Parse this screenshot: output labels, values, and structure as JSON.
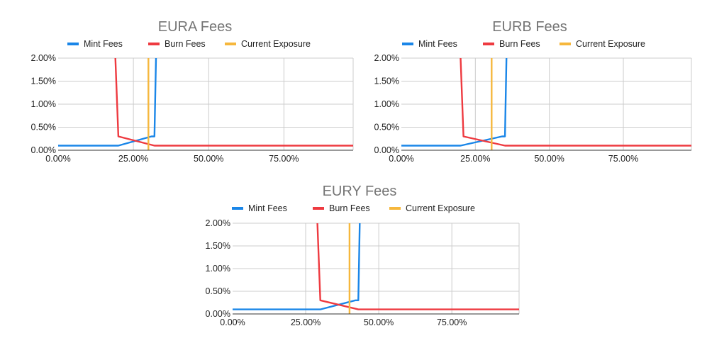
{
  "colors": {
    "mint": "#1a86e8",
    "burn": "#ee3a40",
    "exposure": "#f6b73c"
  },
  "chart_data": [
    {
      "type": "line",
      "title": "EURA Fees",
      "xlim": [
        0,
        0.98
      ],
      "ylim": [
        0,
        0.02
      ],
      "xticks": [
        0,
        0.25,
        0.5,
        0.75
      ],
      "xtick_labels": [
        "0.00%",
        "25.00%",
        "50.00%",
        "75.00%"
      ],
      "yticks": [
        0,
        0.005,
        0.01,
        0.015,
        0.02
      ],
      "ytick_labels": [
        "0.00%",
        "0.50%",
        "1.00%",
        "1.50%",
        "2.00%"
      ],
      "legend": "top",
      "series": [
        {
          "name": "Mint Fees",
          "color": "mint",
          "x": [
            0,
            0.2,
            0.31,
            0.32,
            0.325
          ],
          "y": [
            0.001,
            0.001,
            0.003,
            0.003,
            0.02
          ]
        },
        {
          "name": "Burn Fees",
          "color": "burn",
          "x": [
            0.19,
            0.2,
            0.32,
            0.98
          ],
          "y": [
            0.02,
            0.003,
            0.001,
            0.001
          ]
        },
        {
          "name": "Current Exposure",
          "color": "exposure",
          "x": [
            0.3,
            0.3
          ],
          "y": [
            0,
            0.02
          ]
        }
      ]
    },
    {
      "type": "line",
      "title": "EURB Fees",
      "xlim": [
        0,
        0.98
      ],
      "ylim": [
        0,
        0.02
      ],
      "xticks": [
        0,
        0.25,
        0.5,
        0.75
      ],
      "xtick_labels": [
        "0.00%",
        "25.00%",
        "50.00%",
        "75.00%"
      ],
      "yticks": [
        0,
        0.005,
        0.01,
        0.015,
        0.02
      ],
      "ytick_labels": [
        "0.00%",
        "0.50%",
        "1.00%",
        "1.50%",
        "2.00%"
      ],
      "legend": "top",
      "series": [
        {
          "name": "Mint Fees",
          "color": "mint",
          "x": [
            0,
            0.2,
            0.34,
            0.35,
            0.355
          ],
          "y": [
            0.001,
            0.001,
            0.003,
            0.003,
            0.02
          ]
        },
        {
          "name": "Burn Fees",
          "color": "burn",
          "x": [
            0.2,
            0.21,
            0.35,
            0.98
          ],
          "y": [
            0.02,
            0.003,
            0.001,
            0.001
          ]
        },
        {
          "name": "Current Exposure",
          "color": "exposure",
          "x": [
            0.305,
            0.305
          ],
          "y": [
            0,
            0.02
          ]
        }
      ]
    },
    {
      "type": "line",
      "title": "EURY Fees",
      "xlim": [
        0,
        0.98
      ],
      "ylim": [
        0,
        0.02
      ],
      "xticks": [
        0,
        0.25,
        0.5,
        0.75
      ],
      "xtick_labels": [
        "0.00%",
        "25.00%",
        "50.00%",
        "75.00%"
      ],
      "yticks": [
        0,
        0.005,
        0.01,
        0.015,
        0.02
      ],
      "ytick_labels": [
        "0.00%",
        "0.50%",
        "1.00%",
        "1.50%",
        "2.00%"
      ],
      "legend": "top",
      "series": [
        {
          "name": "Mint Fees",
          "color": "mint",
          "x": [
            0,
            0.3,
            0.42,
            0.43,
            0.435
          ],
          "y": [
            0.001,
            0.001,
            0.003,
            0.003,
            0.02
          ]
        },
        {
          "name": "Burn Fees",
          "color": "burn",
          "x": [
            0.29,
            0.3,
            0.43,
            0.98
          ],
          "y": [
            0.02,
            0.003,
            0.001,
            0.001
          ]
        },
        {
          "name": "Current Exposure",
          "color": "exposure",
          "x": [
            0.4,
            0.4
          ],
          "y": [
            0,
            0.02
          ]
        }
      ]
    }
  ]
}
